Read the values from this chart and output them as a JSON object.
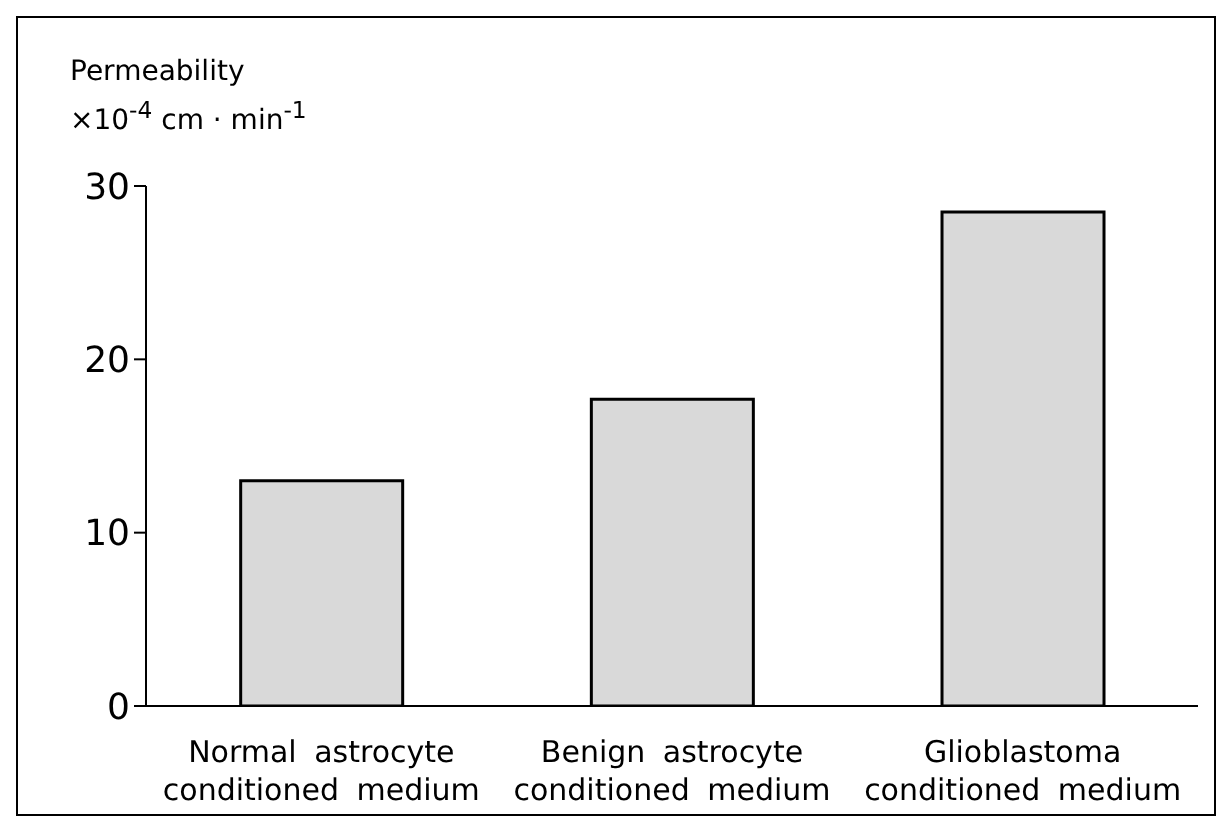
{
  "chart_data": {
    "type": "bar",
    "ylabel": "Permeability\n×10$^{-4}$ cm · min$^{-1}$",
    "categories": [
      "Normal astrocyte conditioned medium",
      "Benign astrocyte conditioned medium",
      "Glioblastoma conditioned medium"
    ],
    "values": [
      13.0,
      17.7,
      28.5
    ],
    "color": "#d9d9d9",
    "ylim": [
      0,
      30
    ],
    "yticks": [
      0,
      10,
      20,
      30
    ],
    "grid": false,
    "legend": false
  }
}
